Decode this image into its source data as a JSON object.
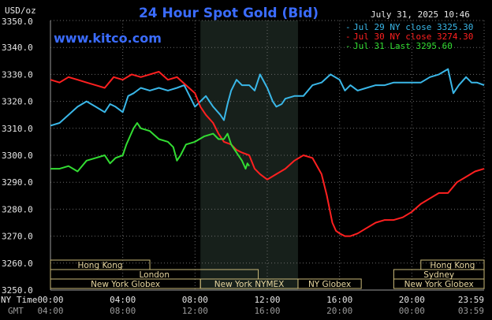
{
  "title": "24 Hour Spot Gold (Bid)",
  "website": "www.kitco.com",
  "timestamp": "July 31, 2025 10:46",
  "y_unit_label": "USD/oz",
  "ny_time_label": "NY Time",
  "gmt_label": "GMT",
  "colors": {
    "background": "#000000",
    "title": "#3b6cff",
    "jul29": "#3ab7e8",
    "jul30": "#ff2020",
    "jul31": "#33dd33",
    "session_border": "#c8b878",
    "overlay": "#17201b"
  },
  "chart_data": {
    "type": "line",
    "title": "24 Hour Spot Gold (Bid)",
    "ylabel": "USD/oz",
    "ylim": [
      3250,
      3350
    ],
    "xlim": [
      0,
      24
    ],
    "grid": true,
    "legend_position": "top-right",
    "y_ticks": [
      "3250.0",
      "3260.0",
      "3270.0",
      "3280.0",
      "3290.0",
      "3300.0",
      "3310.0",
      "3320.0",
      "3330.0",
      "3340.0",
      "3350.0"
    ],
    "ny_ticks": [
      {
        "x": 0,
        "label": "00:00"
      },
      {
        "x": 4,
        "label": "04:00"
      },
      {
        "x": 8,
        "label": "08:00"
      },
      {
        "x": 12,
        "label": "12:00"
      },
      {
        "x": 16,
        "label": "16:00"
      },
      {
        "x": 20,
        "label": "20:00"
      },
      {
        "x": 24,
        "label": "23:59"
      }
    ],
    "gmt_ticks": [
      {
        "x": 0,
        "label": "04:00"
      },
      {
        "x": 4,
        "label": "08:00"
      },
      {
        "x": 8,
        "label": "12:00"
      },
      {
        "x": 12,
        "label": "16:00"
      },
      {
        "x": 16,
        "label": "20:00"
      },
      {
        "x": 20,
        "label": "00:00"
      },
      {
        "x": 24,
        "label": "03:59"
      }
    ],
    "highlight_range": [
      8.3,
      13.7
    ],
    "series": [
      {
        "name": "Jul 29 NY close 3325.30",
        "color": "#3ab7e8",
        "points": [
          [
            0,
            3311
          ],
          [
            0.5,
            3312
          ],
          [
            1,
            3315
          ],
          [
            1.5,
            3318
          ],
          [
            2,
            3320
          ],
          [
            2.5,
            3318
          ],
          [
            3,
            3316
          ],
          [
            3.3,
            3319
          ],
          [
            3.6,
            3318
          ],
          [
            4,
            3316
          ],
          [
            4.3,
            3322
          ],
          [
            4.6,
            3323
          ],
          [
            5,
            3325
          ],
          [
            5.5,
            3324
          ],
          [
            6,
            3325
          ],
          [
            6.5,
            3324
          ],
          [
            7,
            3325
          ],
          [
            7.4,
            3326
          ],
          [
            7.7,
            3322
          ],
          [
            8,
            3318
          ],
          [
            8.3,
            3320
          ],
          [
            8.6,
            3322
          ],
          [
            9,
            3318
          ],
          [
            9.4,
            3315
          ],
          [
            9.6,
            3313
          ],
          [
            9.8,
            3319
          ],
          [
            10,
            3324
          ],
          [
            10.3,
            3328
          ],
          [
            10.6,
            3326
          ],
          [
            11,
            3326
          ],
          [
            11.3,
            3324
          ],
          [
            11.6,
            3330
          ],
          [
            12,
            3325
          ],
          [
            12.3,
            3320
          ],
          [
            12.5,
            3318
          ],
          [
            12.8,
            3319
          ],
          [
            13,
            3321
          ],
          [
            13.5,
            3322
          ],
          [
            14,
            3322
          ],
          [
            14.5,
            3326
          ],
          [
            15,
            3327
          ],
          [
            15.5,
            3330
          ],
          [
            16,
            3328
          ],
          [
            16.3,
            3324
          ],
          [
            16.6,
            3326
          ],
          [
            17,
            3324
          ],
          [
            17.5,
            3325
          ],
          [
            18,
            3326
          ],
          [
            18.5,
            3326
          ],
          [
            19,
            3327
          ],
          [
            19.5,
            3327
          ],
          [
            20,
            3327
          ],
          [
            20.5,
            3327
          ],
          [
            21,
            3329
          ],
          [
            21.5,
            3330
          ],
          [
            22,
            3332
          ],
          [
            22.3,
            3323
          ],
          [
            22.6,
            3326
          ],
          [
            23,
            3329
          ],
          [
            23.3,
            3327
          ],
          [
            23.6,
            3327
          ],
          [
            24,
            3326
          ]
        ]
      },
      {
        "name": "Jul 30 NY close 3274.30",
        "color": "#ff2020",
        "points": [
          [
            0,
            3328
          ],
          [
            0.5,
            3327
          ],
          [
            1,
            3329
          ],
          [
            1.5,
            3328
          ],
          [
            2,
            3327
          ],
          [
            2.5,
            3326
          ],
          [
            3,
            3325
          ],
          [
            3.5,
            3329
          ],
          [
            4,
            3328
          ],
          [
            4.5,
            3330
          ],
          [
            5,
            3329
          ],
          [
            5.5,
            3330
          ],
          [
            6,
            3331
          ],
          [
            6.5,
            3328
          ],
          [
            7,
            3329
          ],
          [
            7.5,
            3326
          ],
          [
            8,
            3323
          ],
          [
            8.3,
            3318
          ],
          [
            8.6,
            3315
          ],
          [
            9,
            3312
          ],
          [
            9.3,
            3308
          ],
          [
            9.6,
            3305
          ],
          [
            10,
            3304
          ],
          [
            10.3,
            3302
          ],
          [
            10.6,
            3301
          ],
          [
            11,
            3300
          ],
          [
            11.3,
            3295
          ],
          [
            11.6,
            3293
          ],
          [
            12,
            3291
          ],
          [
            12.5,
            3293
          ],
          [
            13,
            3295
          ],
          [
            13.5,
            3298
          ],
          [
            14,
            3300
          ],
          [
            14.5,
            3299
          ],
          [
            15,
            3293
          ],
          [
            15.3,
            3285
          ],
          [
            15.6,
            3275
          ],
          [
            15.8,
            3272
          ],
          [
            16,
            3271
          ],
          [
            16.3,
            3270
          ],
          [
            16.6,
            3270
          ],
          [
            17,
            3271
          ],
          [
            17.5,
            3273
          ],
          [
            18,
            3275
          ],
          [
            18.5,
            3276
          ],
          [
            19,
            3276
          ],
          [
            19.5,
            3277
          ],
          [
            20,
            3279
          ],
          [
            20.5,
            3282
          ],
          [
            21,
            3284
          ],
          [
            21.5,
            3286
          ],
          [
            22,
            3286
          ],
          [
            22.5,
            3290
          ],
          [
            23,
            3292
          ],
          [
            23.5,
            3294
          ],
          [
            24,
            3295
          ]
        ]
      },
      {
        "name": "Jul 31 Last 3295.60",
        "color": "#33dd33",
        "points": [
          [
            0,
            3295
          ],
          [
            0.5,
            3295
          ],
          [
            1,
            3296
          ],
          [
            1.5,
            3294
          ],
          [
            2,
            3298
          ],
          [
            2.5,
            3299
          ],
          [
            3,
            3300
          ],
          [
            3.3,
            3297
          ],
          [
            3.6,
            3299
          ],
          [
            4,
            3300
          ],
          [
            4.2,
            3304
          ],
          [
            4.4,
            3307
          ],
          [
            4.6,
            3310
          ],
          [
            4.8,
            3312
          ],
          [
            5,
            3310
          ],
          [
            5.5,
            3309
          ],
          [
            6,
            3306
          ],
          [
            6.5,
            3305
          ],
          [
            6.8,
            3303
          ],
          [
            7,
            3298
          ],
          [
            7.2,
            3300
          ],
          [
            7.5,
            3304
          ],
          [
            8,
            3305
          ],
          [
            8.5,
            3307
          ],
          [
            9,
            3308
          ],
          [
            9.3,
            3306
          ],
          [
            9.6,
            3306
          ],
          [
            9.8,
            3308
          ],
          [
            10,
            3304
          ],
          [
            10.2,
            3302
          ],
          [
            10.4,
            3300
          ],
          [
            10.6,
            3298
          ],
          [
            10.8,
            3295
          ],
          [
            10.9,
            3297
          ],
          [
            11,
            3296
          ]
        ]
      }
    ],
    "sessions": [
      {
        "label": "Hong Kong",
        "start": 0,
        "end": 5.5,
        "row": 0
      },
      {
        "label": "London",
        "start": 0,
        "end": 11.5,
        "row": 1
      },
      {
        "label": "New York Globex",
        "start": 0,
        "end": 8.3,
        "row": 2
      },
      {
        "label": "New York NYMEX",
        "start": 8.3,
        "end": 13.7,
        "row": 2
      },
      {
        "label": "NY Globex",
        "start": 13.7,
        "end": 17.2,
        "row": 2
      },
      {
        "label": "Hong Kong",
        "start": 20.5,
        "end": 24,
        "row": 0
      },
      {
        "label": "Sydney",
        "start": 19,
        "end": 24,
        "row": 1
      },
      {
        "label": "New York Globex",
        "start": 19,
        "end": 24,
        "row": 2
      }
    ]
  }
}
